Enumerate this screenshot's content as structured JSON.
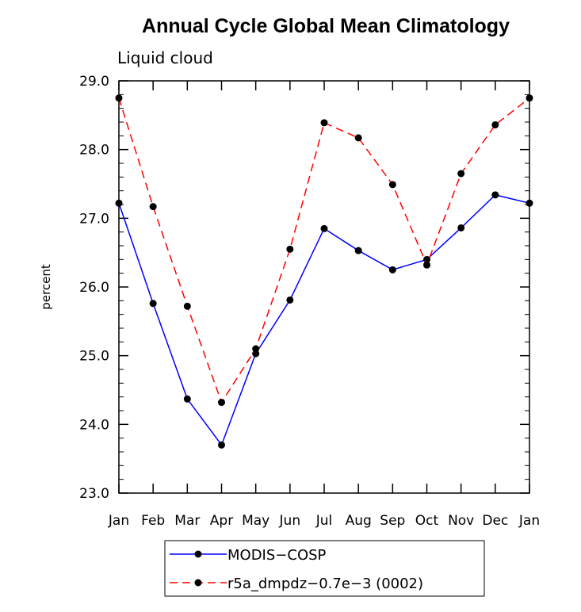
{
  "chart_data": {
    "type": "line",
    "title": "Annual Cycle Global Mean Climatology",
    "subtitle": "Liquid cloud",
    "xlabel": "",
    "ylabel": "percent",
    "categories": [
      "Jan",
      "Feb",
      "Mar",
      "Apr",
      "May",
      "Jun",
      "Jul",
      "Aug",
      "Sep",
      "Oct",
      "Nov",
      "Dec",
      "Jan"
    ],
    "ylim": [
      23.0,
      29.0
    ],
    "yticks": [
      "23.0",
      "24.0",
      "25.0",
      "26.0",
      "27.0",
      "28.0",
      "29.0"
    ],
    "grid": false,
    "legend_position": "bottom",
    "series": [
      {
        "name": "MODIS−COSP",
        "color": "#0000ff",
        "dash": "solid",
        "values": [
          27.22,
          25.76,
          24.37,
          23.7,
          25.03,
          25.81,
          26.85,
          26.53,
          26.25,
          26.4,
          26.86,
          27.34,
          27.22
        ]
      },
      {
        "name": "r5a_dmpdz−0.7e−3 (0002)",
        "color": "#ff0000",
        "dash": "dashed",
        "values": [
          28.75,
          27.17,
          25.72,
          24.32,
          25.1,
          26.55,
          28.39,
          28.17,
          27.49,
          26.32,
          27.65,
          28.36,
          28.75
        ]
      }
    ]
  }
}
